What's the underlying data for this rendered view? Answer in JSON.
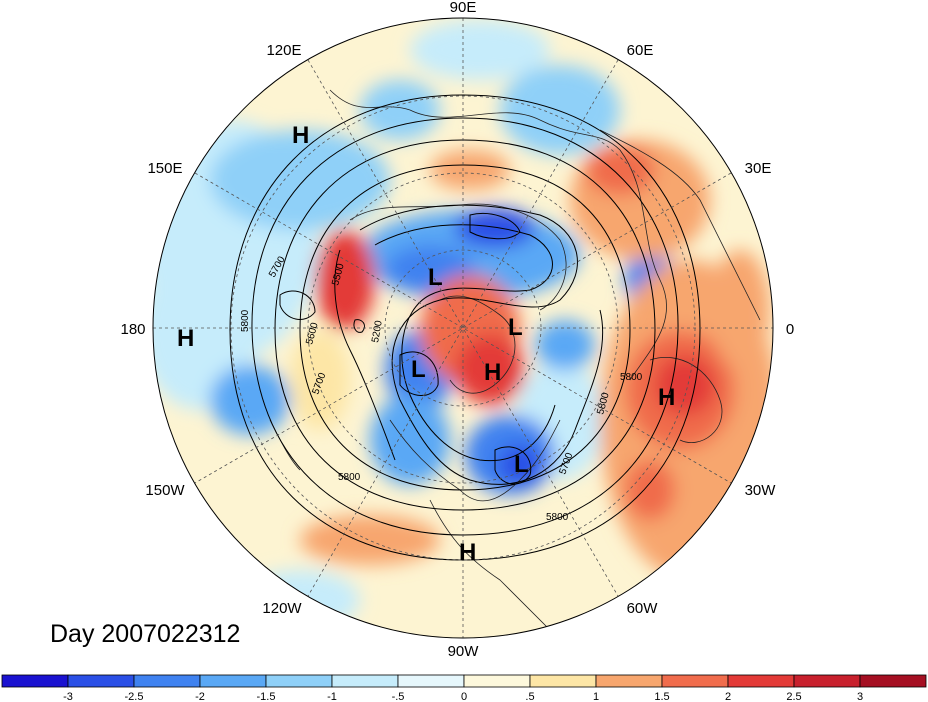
{
  "title": "Day 2007022312",
  "longitude_labels": [
    "90E",
    "60E",
    "30E",
    "0",
    "30W",
    "60W",
    "90W",
    "120W",
    "150W",
    "180",
    "150E",
    "120E"
  ],
  "pressure_centers": [
    {
      "kind": "H",
      "lon": "about 130E",
      "lat": "about 15N"
    },
    {
      "kind": "H",
      "lon": "about 180",
      "lat": "about 15N"
    },
    {
      "kind": "H",
      "lon": "about 90W",
      "lat": "about 18N"
    },
    {
      "kind": "H",
      "lon": "about 15W",
      "lat": "about 35N"
    },
    {
      "kind": "H",
      "lon": "about 60W",
      "lat": "about 75N"
    },
    {
      "kind": "L",
      "lon": "about 115E",
      "lat": "about 60N"
    },
    {
      "kind": "L",
      "lon": "about 60E",
      "lat": "about 80N"
    },
    {
      "kind": "L",
      "lon": "about 110W",
      "lat": "about 68N"
    },
    {
      "kind": "L",
      "lon": "about 65W",
      "lat": "about 45N"
    }
  ],
  "contour_labels": [
    "5700",
    "5500",
    "5200",
    "5600",
    "5800",
    "5700",
    "5800",
    "5800",
    "5800",
    "5700",
    "5800"
  ],
  "colorbar": {
    "ticks": [
      "-3",
      "-2.5",
      "-2",
      "-1.5",
      "-1",
      "-.5",
      "0",
      ".5",
      "1",
      "1.5",
      "2",
      "2.5",
      "3"
    ],
    "colors": [
      "#1a12d0",
      "#2a4fe6",
      "#3f82f0",
      "#5aa8f5",
      "#8fd0f8",
      "#c6ecfb",
      "#e6f7fc",
      "#fdf8dc",
      "#fde6a6",
      "#f7a66e",
      "#f06c4c",
      "#e33a37",
      "#c8202d",
      "#a50f22"
    ]
  },
  "colors": {
    "frame": "#000000",
    "grid": "#555555"
  }
}
